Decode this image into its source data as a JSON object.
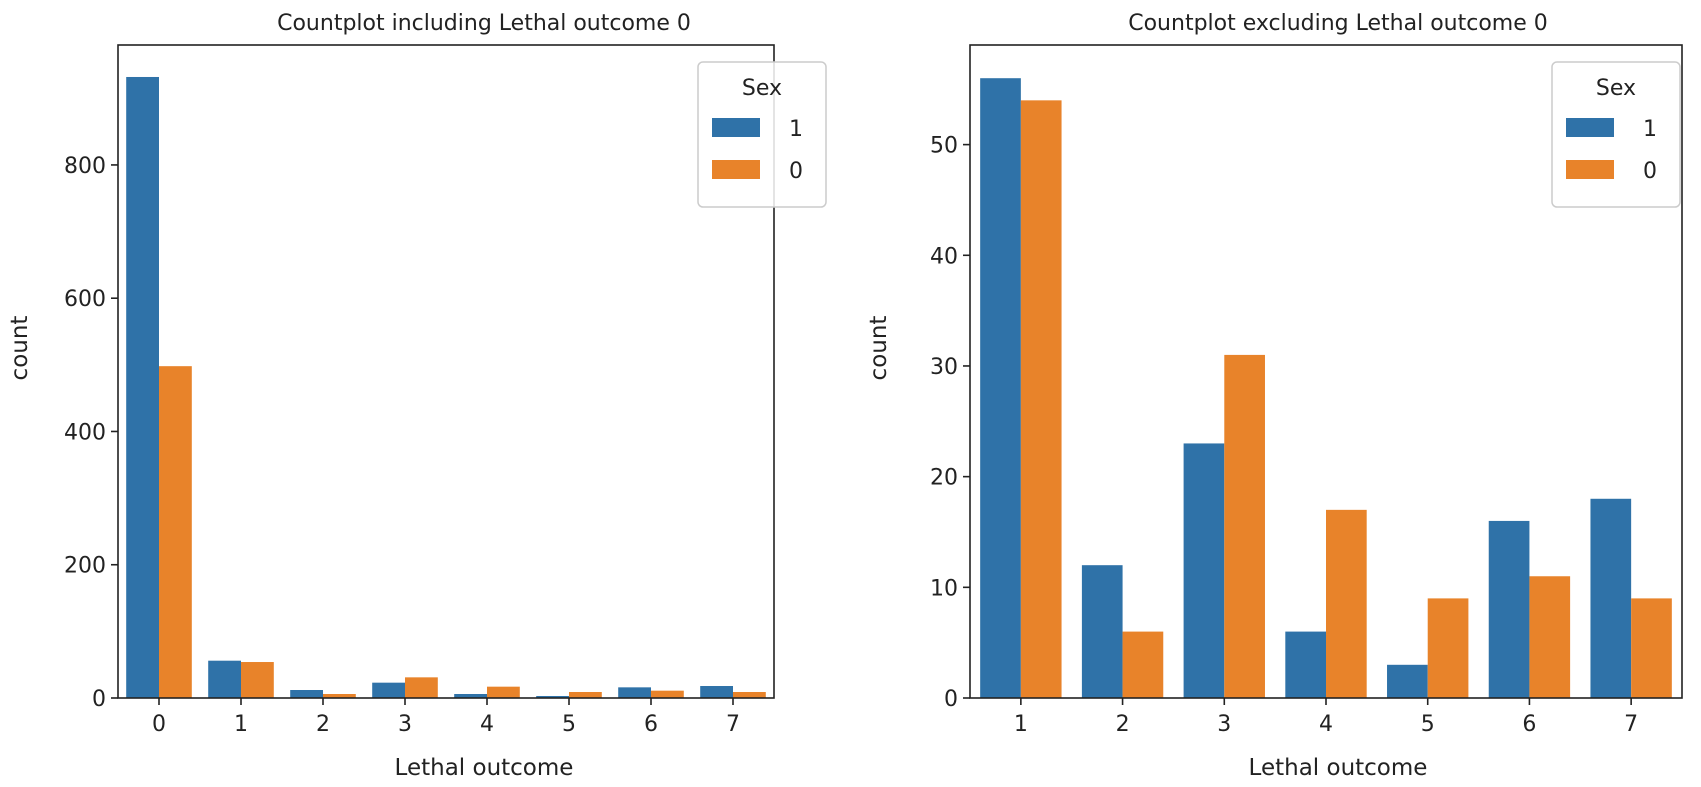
{
  "chart_data": [
    {
      "type": "bar",
      "title": "Countplot including Lethal outcome 0",
      "xlabel": "Lethal outcome",
      "ylabel": "count",
      "categories": [
        "0",
        "1",
        "2",
        "3",
        "4",
        "5",
        "6",
        "7"
      ],
      "ylim": [
        0,
        980
      ],
      "yticks": [
        0,
        200,
        400,
        600,
        800
      ],
      "legend": {
        "title": "Sex",
        "placement": "top-right"
      },
      "series": [
        {
          "name": "1",
          "color": "#2f72a8",
          "values": [
            932,
            56,
            12,
            23,
            6,
            3,
            16,
            18
          ]
        },
        {
          "name": "0",
          "color": "#e8832a",
          "values": [
            498,
            54,
            6,
            31,
            17,
            9,
            11,
            9
          ]
        }
      ]
    },
    {
      "type": "bar",
      "title": "Countplot excluding Lethal outcome 0",
      "xlabel": "Lethal outcome",
      "ylabel": "count",
      "categories": [
        "1",
        "2",
        "3",
        "4",
        "5",
        "6",
        "7"
      ],
      "ylim": [
        0,
        59
      ],
      "yticks": [
        0,
        10,
        20,
        30,
        40,
        50
      ],
      "legend": {
        "title": "Sex",
        "placement": "top-right"
      },
      "series": [
        {
          "name": "1",
          "color": "#2f72a8",
          "values": [
            56,
            12,
            23,
            6,
            3,
            16,
            18
          ]
        },
        {
          "name": "0",
          "color": "#e8832a",
          "values": [
            54,
            6,
            31,
            17,
            9,
            11,
            9
          ]
        }
      ]
    }
  ]
}
